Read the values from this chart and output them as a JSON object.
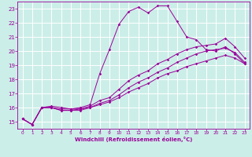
{
  "xlabel": "Windchill (Refroidissement éolien,°C)",
  "bg_color": "#cceee8",
  "grid_color": "#ffffff",
  "line_color": "#990099",
  "xlim": [
    -0.5,
    23.5
  ],
  "ylim": [
    14.5,
    23.5
  ],
  "xticks": [
    0,
    1,
    2,
    3,
    4,
    5,
    6,
    7,
    8,
    9,
    10,
    11,
    12,
    13,
    14,
    15,
    16,
    17,
    18,
    19,
    20,
    21,
    22,
    23
  ],
  "yticks": [
    15,
    16,
    17,
    18,
    19,
    20,
    21,
    22,
    23
  ],
  "lines": [
    {
      "x": [
        0,
        1,
        2,
        3,
        4,
        5,
        6,
        7,
        8,
        9,
        10,
        11,
        12,
        13,
        14,
        15,
        16,
        17,
        18,
        19,
        20,
        21,
        22,
        23
      ],
      "y": [
        15.2,
        14.8,
        16.0,
        16.1,
        16.0,
        15.9,
        16.0,
        16.2,
        18.4,
        20.1,
        21.9,
        22.8,
        23.1,
        22.7,
        23.2,
        23.2,
        22.1,
        21.0,
        20.8,
        20.1,
        20.0,
        20.3,
        19.8,
        19.1
      ]
    },
    {
      "x": [
        0,
        1,
        2,
        3,
        4,
        5,
        6,
        7,
        8,
        9,
        10,
        11,
        12,
        13,
        14,
        15,
        16,
        17,
        18,
        19,
        20,
        21,
        22,
        23
      ],
      "y": [
        15.2,
        14.8,
        16.0,
        16.0,
        15.9,
        15.9,
        15.9,
        16.1,
        16.5,
        16.7,
        17.3,
        17.9,
        18.3,
        18.6,
        19.1,
        19.4,
        19.8,
        20.1,
        20.3,
        20.4,
        20.5,
        20.9,
        20.3,
        19.5
      ]
    },
    {
      "x": [
        0,
        1,
        2,
        3,
        4,
        5,
        6,
        7,
        8,
        9,
        10,
        11,
        12,
        13,
        14,
        15,
        16,
        17,
        18,
        19,
        20,
        21,
        22,
        23
      ],
      "y": [
        15.2,
        14.8,
        16.0,
        16.0,
        15.8,
        15.8,
        15.9,
        16.0,
        16.3,
        16.5,
        16.9,
        17.4,
        17.8,
        18.1,
        18.5,
        18.8,
        19.2,
        19.5,
        19.8,
        20.0,
        20.1,
        20.2,
        19.9,
        19.2
      ]
    },
    {
      "x": [
        0,
        1,
        2,
        3,
        4,
        5,
        6,
        7,
        8,
        9,
        10,
        11,
        12,
        13,
        14,
        15,
        16,
        17,
        18,
        19,
        20,
        21,
        22,
        23
      ],
      "y": [
        15.2,
        14.8,
        16.0,
        16.0,
        15.8,
        15.8,
        15.8,
        16.0,
        16.2,
        16.4,
        16.7,
        17.1,
        17.4,
        17.7,
        18.1,
        18.4,
        18.6,
        18.9,
        19.1,
        19.3,
        19.5,
        19.7,
        19.5,
        19.1
      ]
    }
  ]
}
